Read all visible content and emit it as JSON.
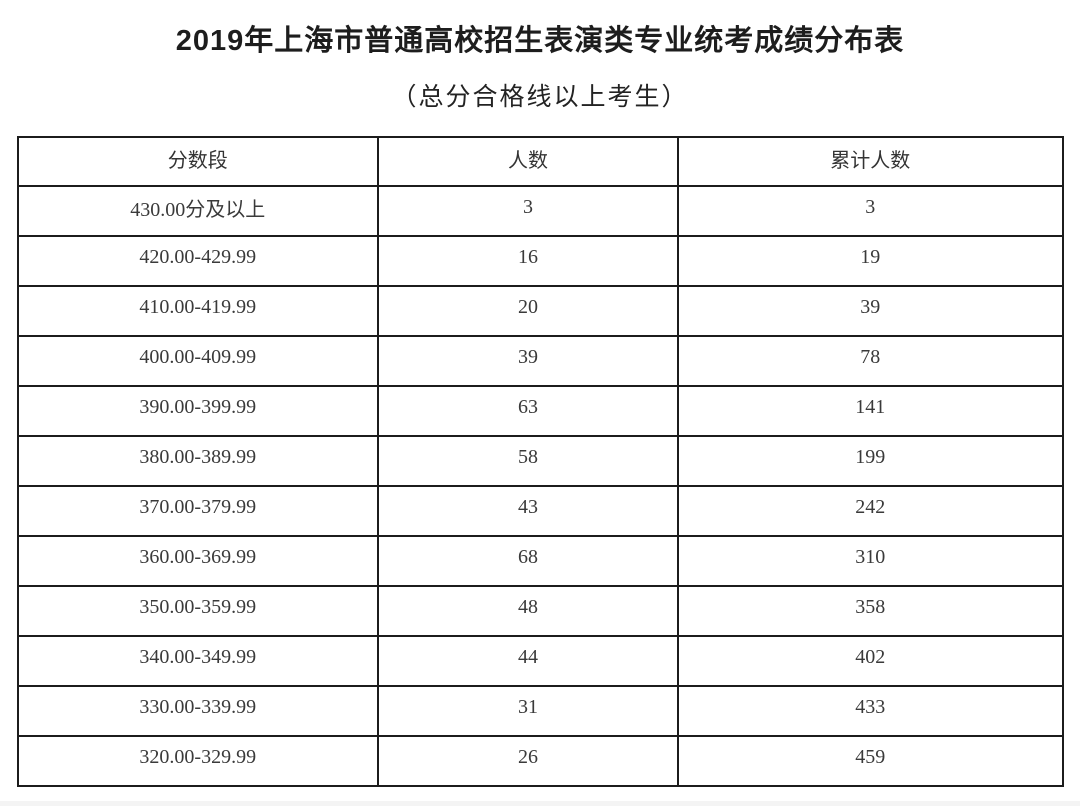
{
  "page": {
    "title": "2019年上海市普通高校招生表演类专业统考成绩分布表",
    "subtitle": "（总分合格线以上考生）"
  },
  "table": {
    "headers": [
      "分数段",
      "人数",
      "累计人数"
    ],
    "rows": [
      [
        "430.00分及以上",
        "3",
        "3"
      ],
      [
        "420.00-429.99",
        "16",
        "19"
      ],
      [
        "410.00-419.99",
        "20",
        "39"
      ],
      [
        "400.00-409.99",
        "39",
        "78"
      ],
      [
        "390.00-399.99",
        "63",
        "141"
      ],
      [
        "380.00-389.99",
        "58",
        "199"
      ],
      [
        "370.00-379.99",
        "43",
        "242"
      ],
      [
        "360.00-369.99",
        "68",
        "310"
      ],
      [
        "350.00-359.99",
        "48",
        "358"
      ],
      [
        "340.00-349.99",
        "44",
        "402"
      ],
      [
        "330.00-339.99",
        "31",
        "433"
      ],
      [
        "320.00-329.99",
        "26",
        "459"
      ]
    ]
  },
  "chart_data": {
    "type": "table",
    "title": "2019年上海市普通高校招生表演类专业统考成绩分布表",
    "subtitle": "（总分合格线以上考生）",
    "columns": [
      "分数段",
      "人数",
      "累计人数"
    ],
    "score_bands": [
      "430.00分及以上",
      "420.00-429.99",
      "410.00-419.99",
      "400.00-409.99",
      "390.00-399.99",
      "380.00-389.99",
      "370.00-379.99",
      "360.00-369.99",
      "350.00-359.99",
      "340.00-349.99",
      "330.00-339.99",
      "320.00-329.99"
    ],
    "counts": [
      3,
      16,
      20,
      39,
      63,
      58,
      43,
      68,
      48,
      44,
      31,
      26
    ],
    "cumulative_counts": [
      3,
      19,
      39,
      78,
      141,
      199,
      242,
      310,
      358,
      402,
      433,
      459
    ]
  },
  "colors": {
    "text": "#3a3a3a",
    "title_text": "#1d1d1d",
    "border": "#1c1c1c",
    "background": "#ffffff"
  }
}
